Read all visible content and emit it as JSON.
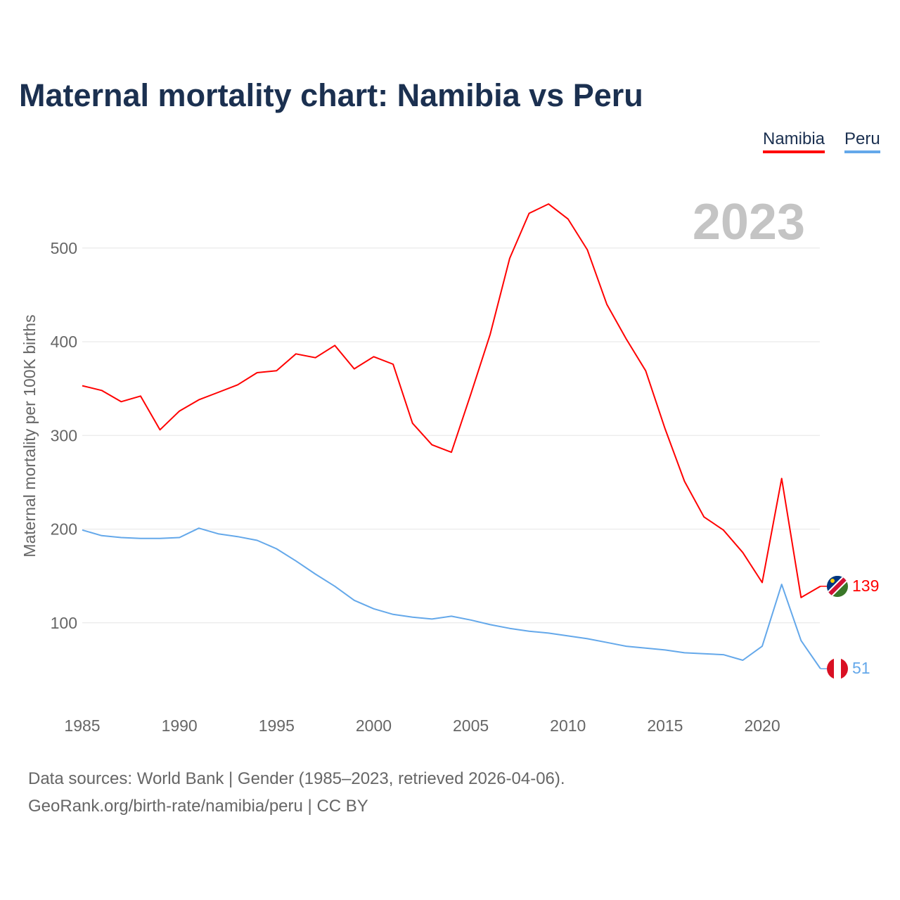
{
  "title": "Maternal mortality chart: Namibia vs Peru",
  "legend": [
    "Namibia",
    "Peru"
  ],
  "year_label": "2023",
  "source_line1": "Data sources: World Bank | Gender (1985–2023, retrieved 2026-04-06).",
  "source_line2": "GeoRank.org/birth-rate/namibia/peru | CC BY",
  "chart_data": {
    "type": "line",
    "title": "Maternal mortality chart: Namibia vs Peru",
    "xlabel": "",
    "ylabel": "Maternal mortality per 100K births",
    "xlim": [
      1985,
      2023
    ],
    "ylim": [
      0,
      560
    ],
    "xticks": [
      1985,
      1990,
      1995,
      2000,
      2005,
      2010,
      2015,
      2020
    ],
    "yticks": [
      100,
      200,
      300,
      400,
      500
    ],
    "grid": true,
    "legend_position": "top-right",
    "x": [
      1985,
      1986,
      1987,
      1988,
      1989,
      1990,
      1991,
      1992,
      1993,
      1994,
      1995,
      1996,
      1997,
      1998,
      1999,
      2000,
      2001,
      2002,
      2003,
      2004,
      2005,
      2006,
      2007,
      2008,
      2009,
      2010,
      2011,
      2012,
      2013,
      2014,
      2015,
      2016,
      2017,
      2018,
      2019,
      2020,
      2021,
      2022,
      2023
    ],
    "series": [
      {
        "name": "Namibia",
        "color": "#ff0000",
        "end_label": "139",
        "values": [
          353,
          348,
          336,
          342,
          306,
          326,
          338,
          346,
          354,
          367,
          369,
          387,
          383,
          396,
          371,
          384,
          376,
          313,
          290,
          282,
          344,
          408,
          489,
          537,
          547,
          531,
          498,
          440,
          403,
          369,
          307,
          251,
          213,
          199,
          175,
          143,
          254,
          127,
          139
        ]
      },
      {
        "name": "Peru",
        "color": "#64a8ea",
        "end_label": "51",
        "values": [
          199,
          193,
          191,
          190,
          190,
          191,
          201,
          195,
          192,
          188,
          179,
          166,
          152,
          139,
          124,
          115,
          109,
          106,
          104,
          107,
          103,
          98,
          94,
          91,
          89,
          86,
          83,
          79,
          75,
          73,
          71,
          68,
          67,
          66,
          60,
          75,
          141,
          81,
          51
        ]
      }
    ]
  }
}
